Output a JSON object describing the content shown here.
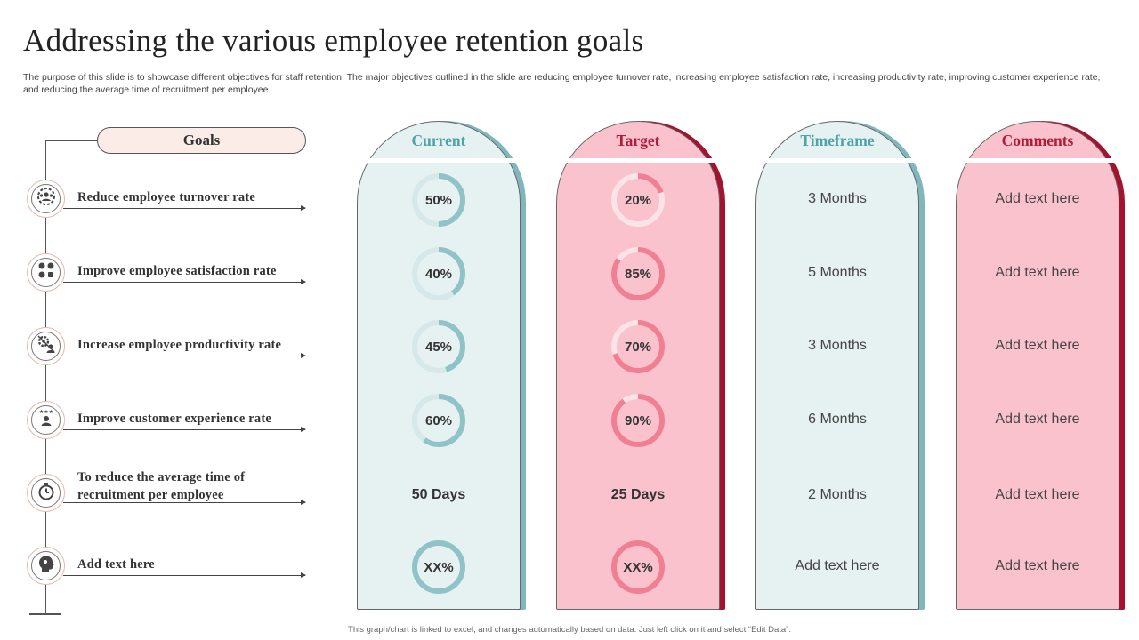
{
  "header": {
    "title": "Addressing the various employee retention goals",
    "subtitle": "The purpose of this slide is to showcase different objectives for staff retention. The major objectives outlined in the slide are reducing employee turnover rate, increasing employee satisfaction rate, increasing productivity rate, improving customer experience rate, and reducing the average time of recruitment per employee."
  },
  "goals": {
    "header": "Goals",
    "items": [
      {
        "label": "Reduce employee turnover rate",
        "icon": "team-gear-icon"
      },
      {
        "label": "Improve employee satisfaction rate",
        "icon": "satisfaction-faces-icon"
      },
      {
        "label": "Increase employee productivity  rate",
        "icon": "productivity-gear-icon"
      },
      {
        "label": "Improve customer experience rate",
        "icon": "customer-stars-icon"
      },
      {
        "label": "To reduce the average time of recruitment  per employee",
        "icon": "stopwatch-icon"
      },
      {
        "label": "Add text here",
        "icon": "head-profile-icon"
      }
    ]
  },
  "columns": {
    "current": {
      "heading": "Current",
      "heading_color": "#4ea3a8",
      "fill": "#e6f1f1",
      "shadow": "#7fb7bb",
      "ring_color": "#8fc3c8",
      "ring_track": "#d6e8ea",
      "rows": [
        {
          "type": "ring",
          "text": "50%",
          "value": 0.5
        },
        {
          "type": "ring",
          "text": "40%",
          "value": 0.4
        },
        {
          "type": "ring",
          "text": "45%",
          "value": 0.45
        },
        {
          "type": "ring",
          "text": "60%",
          "value": 0.6
        },
        {
          "type": "text",
          "text": "50 Days"
        },
        {
          "type": "ring",
          "text": "XX%",
          "value": 1.0
        }
      ]
    },
    "target": {
      "heading": "Target",
      "heading_color": "#b01c3a",
      "fill": "#f9c2cd",
      "shadow": "#a3122f",
      "ring_color": "#f07f93",
      "ring_track": "#fbe3e8",
      "rows": [
        {
          "type": "ring",
          "text": "20%",
          "value": 0.2
        },
        {
          "type": "ring",
          "text": "85%",
          "value": 0.85
        },
        {
          "type": "ring",
          "text": "70%",
          "value": 0.7
        },
        {
          "type": "ring",
          "text": "90%",
          "value": 0.9
        },
        {
          "type": "text",
          "text": "25 Days"
        },
        {
          "type": "ring",
          "text": "XX%",
          "value": 1.0
        }
      ]
    },
    "timeframe": {
      "heading": "Timeframe",
      "heading_color": "#4ea3a8",
      "fill": "#e6f1f1",
      "shadow": "#7fb7bb",
      "rows": [
        "3 Months",
        "5 Months",
        "3 Months",
        "6 Months",
        "2 Months",
        "Add text here"
      ]
    },
    "comments": {
      "heading": "Comments",
      "heading_color": "#b01c3a",
      "fill": "#f9c2cd",
      "shadow": "#a3122f",
      "rows": [
        "Add text here",
        "Add text here",
        "Add text here",
        "Add text here",
        "Add text here",
        "Add text here"
      ]
    }
  },
  "footer": {
    "note": "This graph/chart is linked to excel, and changes automatically based on data. Just left click on it and select “Edit Data”."
  }
}
